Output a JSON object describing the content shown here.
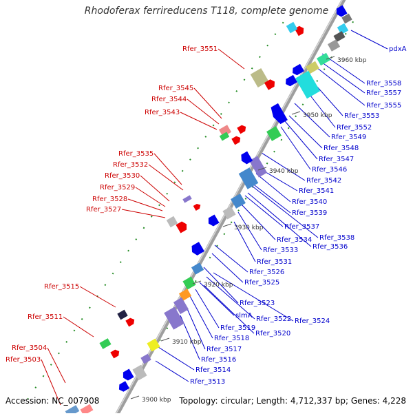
{
  "title": "Rhodoferax ferrireducens T118, complete genome",
  "footer": {
    "accession": "Accession: NC_007908",
    "topology": "Topology: circular; Length: 4,712,337 bp; Genes: 4,228"
  },
  "colors": {
    "forward_label": "#cc0000",
    "reverse_label": "#0000cc",
    "forward_gene": "#ee0000",
    "reverse_gene": "#0000ee",
    "backbone": "#9e9e9e",
    "tick": "#228b22"
  },
  "ticks": [
    "3900 kbp",
    "3910 kbp",
    "3920 kbp",
    "3930 kbp",
    "3940 kbp",
    "3950 kbp",
    "3960 kbp"
  ],
  "forward_labels": [
    "Rfer_3551",
    "Rfer_3545",
    "Rfer_3544",
    "Rfer_3543",
    "Rfer_3535",
    "Rfer_3532",
    "Rfer_3530",
    "Rfer_3529",
    "Rfer_3528",
    "Rfer_3527",
    "Rfer_3515",
    "Rfer_3511",
    "Rfer_3504",
    "Rfer_3503"
  ],
  "reverse_labels": [
    "pdxA",
    "Rfer_3558",
    "Rfer_3557",
    "Rfer_3555",
    "Rfer_3553",
    "Rfer_3552",
    "Rfer_3549",
    "Rfer_3548",
    "Rfer_3547",
    "Rfer_3546",
    "Rfer_3542",
    "Rfer_3541",
    "Rfer_3540",
    "Rfer_3539",
    "Rfer_3537",
    "Rfer_3538",
    "Rfer_3534",
    "Rfer_3536",
    "Rfer_3533",
    "Rfer_3531",
    "Rfer_3526",
    "Rfer_3525",
    "Rfer_3523",
    "slmA",
    "Rfer_3522",
    "Rfer_3524",
    "Rfer_3519",
    "Rfer_3520",
    "Rfer_3518",
    "Rfer_3517",
    "Rfer_3516",
    "Rfer_3514",
    "Rfer_3513"
  ]
}
